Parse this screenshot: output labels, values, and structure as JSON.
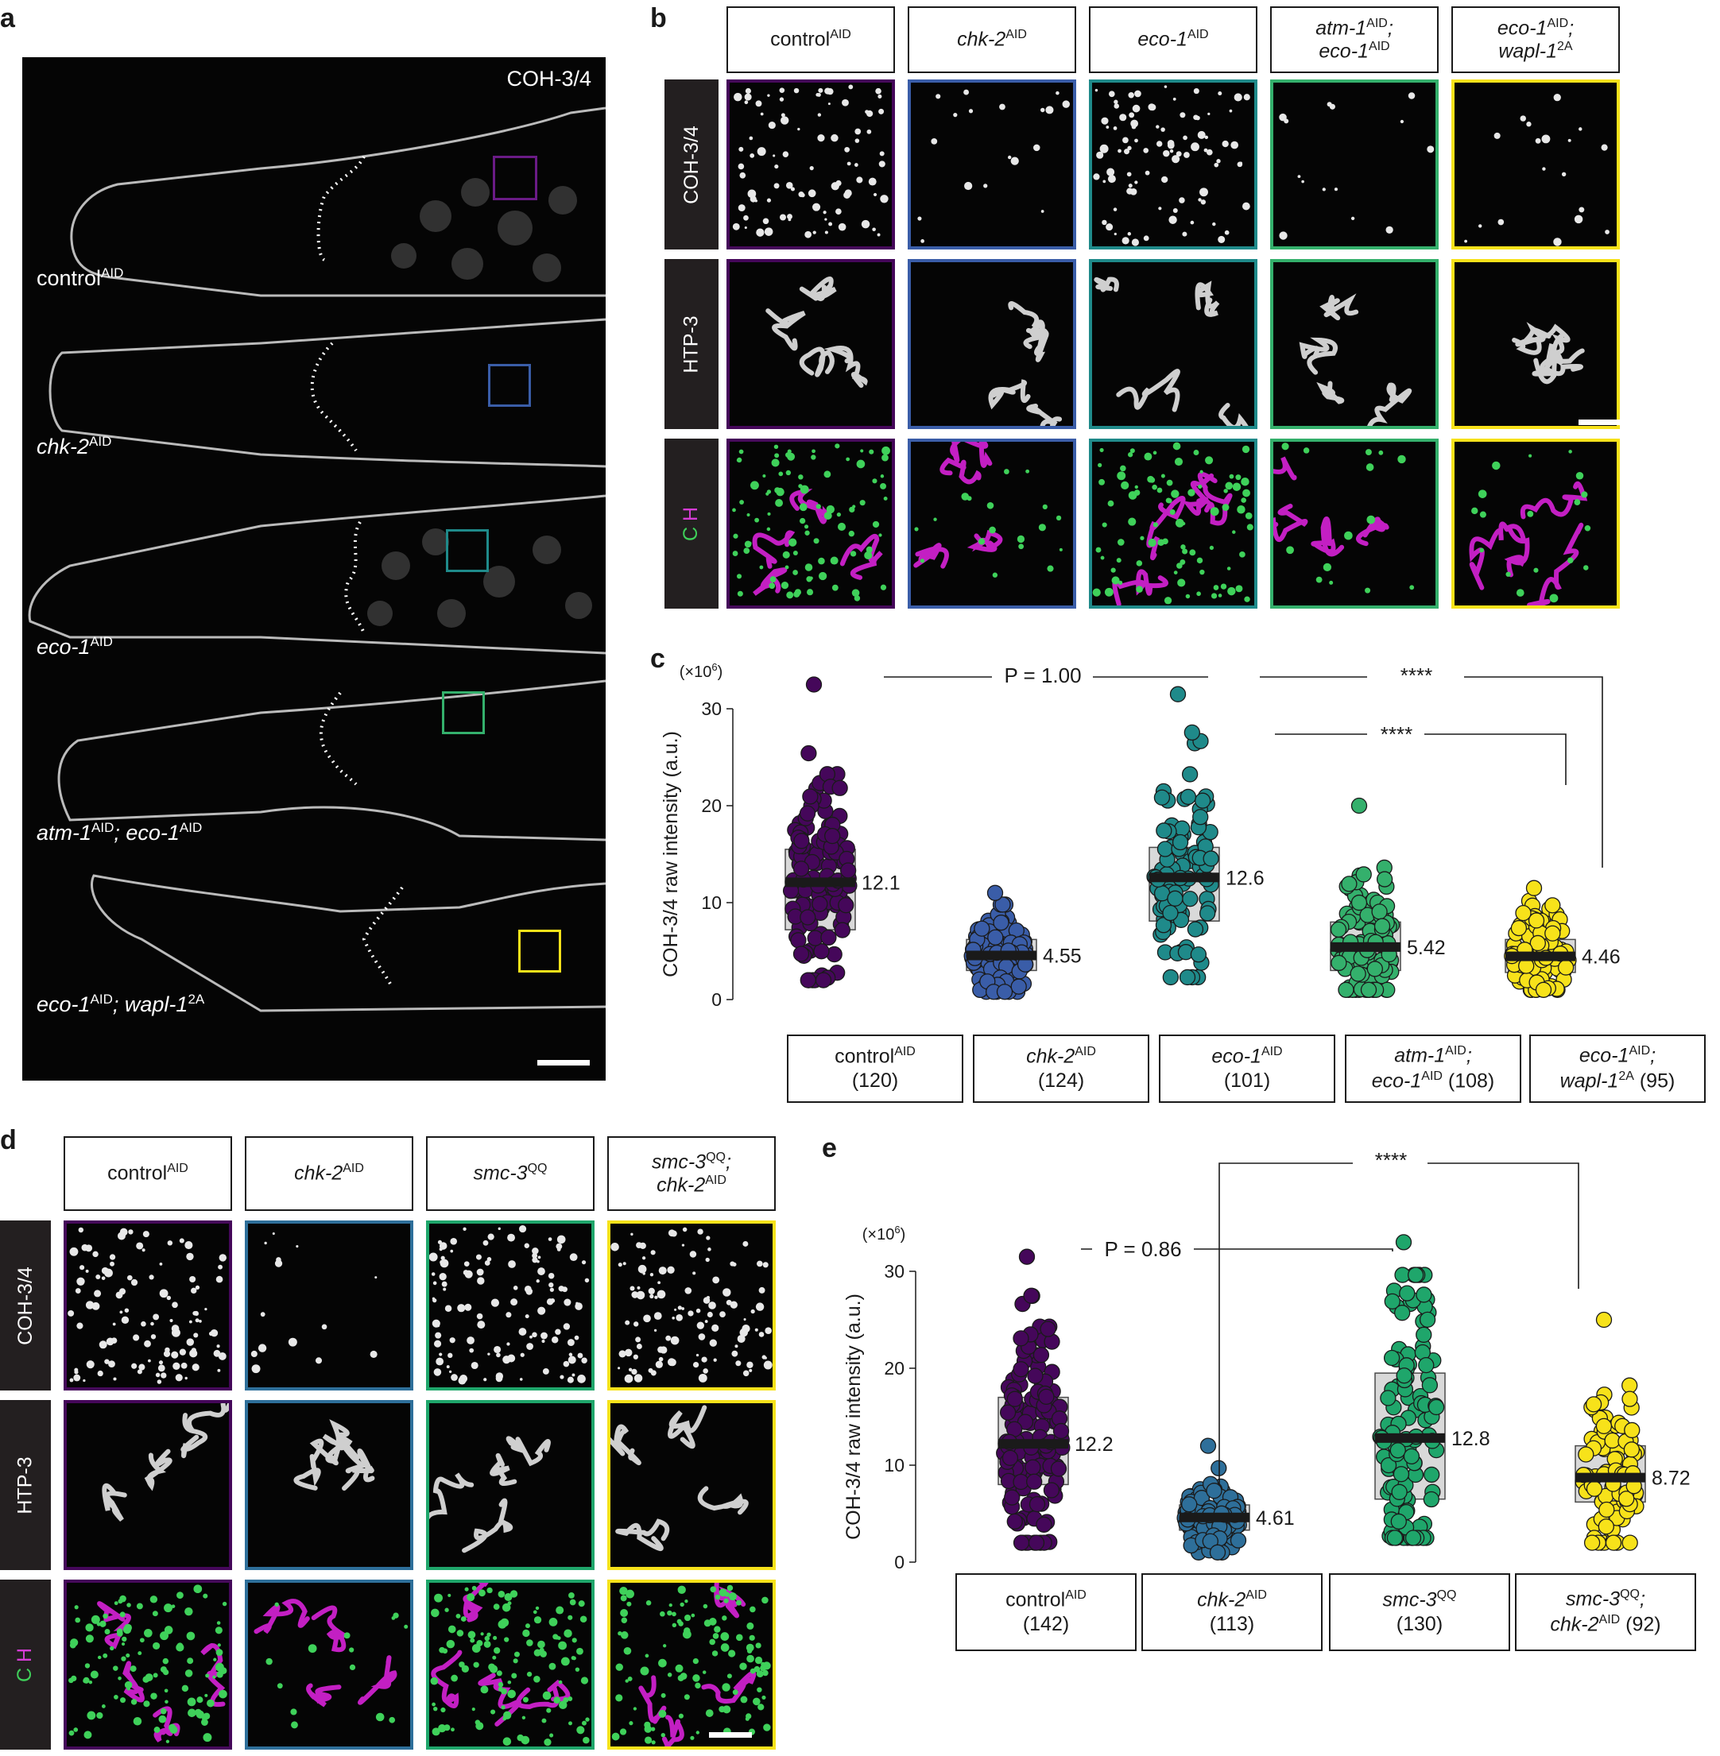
{
  "panel_labels": {
    "a": "a",
    "b": "b",
    "c": "c",
    "d": "d",
    "e": "e"
  },
  "colors": {
    "control": "#45075a",
    "chk2": "#3a5da8",
    "eco1": "#1f8a8a",
    "atm_eco": "#34b06c",
    "eco_wapl": "#f7e21a",
    "smc3": "#1fa66b",
    "smc3_chk2": "#f7e21a"
  },
  "panel_a": {
    "channel": "COH-3/4",
    "genotypes": [
      {
        "name": "control",
        "sup": "AID",
        "rest": "",
        "rest_sup": ""
      },
      {
        "name": "chk-2",
        "sup": "AID",
        "rest": "",
        "rest_sup": ""
      },
      {
        "name": "eco-1",
        "sup": "AID",
        "rest": "",
        "rest_sup": ""
      },
      {
        "name": "atm-1",
        "sup": "AID",
        "rest": "; eco-1",
        "rest_sup": "AID"
      },
      {
        "name": "eco-1",
        "sup": "AID",
        "rest": "; wapl-1",
        "rest_sup": "2A"
      }
    ]
  },
  "panel_b": {
    "headers": [
      {
        "l1": "control",
        "l1s": "AID",
        "l2": "",
        "l2s": ""
      },
      {
        "l1": "chk-2",
        "l1s": "AID",
        "l2": "",
        "l2s": ""
      },
      {
        "l1": "eco-1",
        "l1s": "AID",
        "l2": "",
        "l2s": ""
      },
      {
        "l1": "atm-1",
        "l1s": "AID",
        "l1t": ";",
        "l2": "eco-1",
        "l2s": "AID"
      },
      {
        "l1": "eco-1",
        "l1s": "AID",
        "l1t": ";",
        "l2": "wapl-1",
        "l2s": "2A"
      }
    ],
    "rows": [
      "COH-3/4",
      "HTP-3"
    ],
    "merge_c": "C",
    "merge_h": "H"
  },
  "panel_d": {
    "headers": [
      {
        "l1": "control",
        "l1s": "AID",
        "l2": "",
        "l2s": ""
      },
      {
        "l1": "chk-2",
        "l1s": "AID",
        "l2": "",
        "l2s": ""
      },
      {
        "l1": "smc-3",
        "l1s": "QQ",
        "l2": "",
        "l2s": ""
      },
      {
        "l1": "smc-3",
        "l1s": "QQ",
        "l1t": ";",
        "l2": "chk-2",
        "l2s": "AID"
      }
    ],
    "rows": [
      "COH-3/4",
      "HTP-3"
    ],
    "merge_c": "C",
    "merge_h": "H"
  },
  "chart_data": [
    {
      "type": "scatter",
      "ylabel": "COH-3/4 raw intensity (a.u.)",
      "yunit": "(×10",
      "yunit_sup": "6",
      "yunit_end": ")",
      "ylim": [
        0,
        30
      ],
      "yticks": [
        0,
        10,
        20,
        30
      ],
      "categories": [
        {
          "l1": "control",
          "l1s": "AID",
          "l1t": "",
          "l2": "(120)",
          "median": 12.1,
          "q1": 7.2,
          "q3": 15.5,
          "min": 2.0,
          "max": 32.5
        },
        {
          "l1": "chk-2",
          "l1s": "AID",
          "l1t": "",
          "l2": "(124)",
          "median": 4.55,
          "q1": 3.0,
          "q3": 6.2,
          "min": 0.8,
          "max": 11.0
        },
        {
          "l1": "eco-1",
          "l1s": "AID",
          "l1t": "",
          "l2": "(101)",
          "median": 12.6,
          "q1": 8.1,
          "q3": 15.7,
          "min": 2.3,
          "max": 31.5
        },
        {
          "l1": "atm-1",
          "l1s": "AID",
          "l1t": ";",
          "l2a": "eco-1",
          "l2s": "AID",
          "l2": " (108)",
          "median": 5.42,
          "q1": 3.0,
          "q3": 8.0,
          "min": 1.0,
          "max": 20.0
        },
        {
          "l1": "eco-1",
          "l1s": "AID",
          "l1t": ";",
          "l2a": "wapl-1",
          "l2s": "2A",
          "l2": " (95)",
          "median": 4.46,
          "q1": 2.8,
          "q3": 6.2,
          "min": 1.0,
          "max": 11.5
        }
      ],
      "median_labels": [
        "12.1",
        "4.55",
        "12.6",
        "5.42",
        "4.46"
      ],
      "comparisons": [
        {
          "label": "P = 1.00"
        },
        {
          "label": "****"
        },
        {
          "label": "****"
        }
      ]
    },
    {
      "type": "scatter",
      "ylabel": "COH-3/4 raw intensity (a.u.)",
      "yunit": "(×10",
      "yunit_sup": "6",
      "yunit_end": ")",
      "ylim": [
        0,
        30
      ],
      "yticks": [
        0,
        10,
        20,
        30
      ],
      "categories": [
        {
          "l1": "control",
          "l1s": "AID",
          "l1t": "",
          "l2": "(142)",
          "median": 12.2,
          "q1": 8.0,
          "q3": 17.0,
          "min": 2.0,
          "max": 31.5
        },
        {
          "l1": "chk-2",
          "l1s": "AID",
          "l1t": "",
          "l2": "(113)",
          "median": 4.61,
          "q1": 3.3,
          "q3": 5.9,
          "min": 1.0,
          "max": 12.0
        },
        {
          "l1": "smc-3",
          "l1s": "QQ",
          "l1t": "",
          "l2": "(130)",
          "median": 12.8,
          "q1": 6.5,
          "q3": 19.5,
          "min": 2.5,
          "max": 33.0
        },
        {
          "l1": "smc-3",
          "l1s": "QQ",
          "l1t": ";",
          "l2a": "chk-2",
          "l2s": "AID",
          "l2": " (92)",
          "median": 8.72,
          "q1": 6.2,
          "q3": 12.0,
          "min": 2.0,
          "max": 25.0
        }
      ],
      "median_labels": [
        "12.2",
        "4.61",
        "12.8",
        "8.72"
      ],
      "comparisons": [
        {
          "label": "P = 0.86"
        },
        {
          "label": "****"
        }
      ]
    }
  ]
}
